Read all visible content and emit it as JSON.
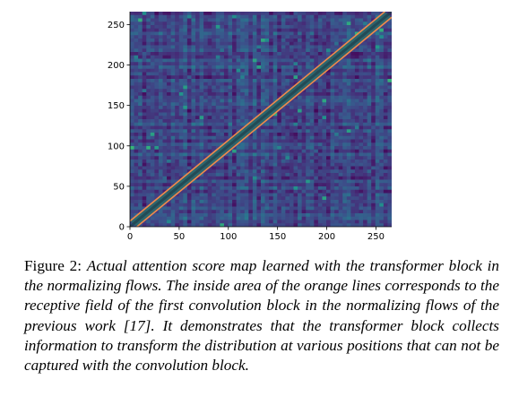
{
  "figure": {
    "label": "Figure 2:",
    "caption": "Actual attention score map learned with the trans­former block in the normalizing flows. The inside area of the orange lines corresponds to the receptive field of the first convo­lution block in the normalizing flows of the previous work [17]. It demonstrates that the transformer block collects information to transform the distribution at various positions that can not be captured with the convolution block."
  },
  "chart_data": {
    "type": "heatmap",
    "title": "",
    "xlabel": "",
    "ylabel": "",
    "xlim": [
      0,
      266
    ],
    "ylim": [
      0,
      266
    ],
    "x_ticks": [
      0,
      50,
      100,
      150,
      200,
      250
    ],
    "y_ticks": [
      0,
      50,
      100,
      150,
      200,
      250
    ],
    "colormap": "viridis",
    "grid": false,
    "annotations": [
      {
        "kind": "line",
        "description": "diagonal band boundary (upper)",
        "points": [
          [
            0,
            7
          ],
          [
            259,
            266
          ]
        ],
        "color": "#f08a4b"
      },
      {
        "kind": "line",
        "description": "diagonal band boundary (lower)",
        "points": [
          [
            7,
            0
          ],
          [
            266,
            259
          ]
        ],
        "color": "#f08a4b"
      }
    ],
    "colors": {
      "background": "#3e4a89",
      "band": "#2a6b6a",
      "lines": "#f08a4b"
    }
  }
}
